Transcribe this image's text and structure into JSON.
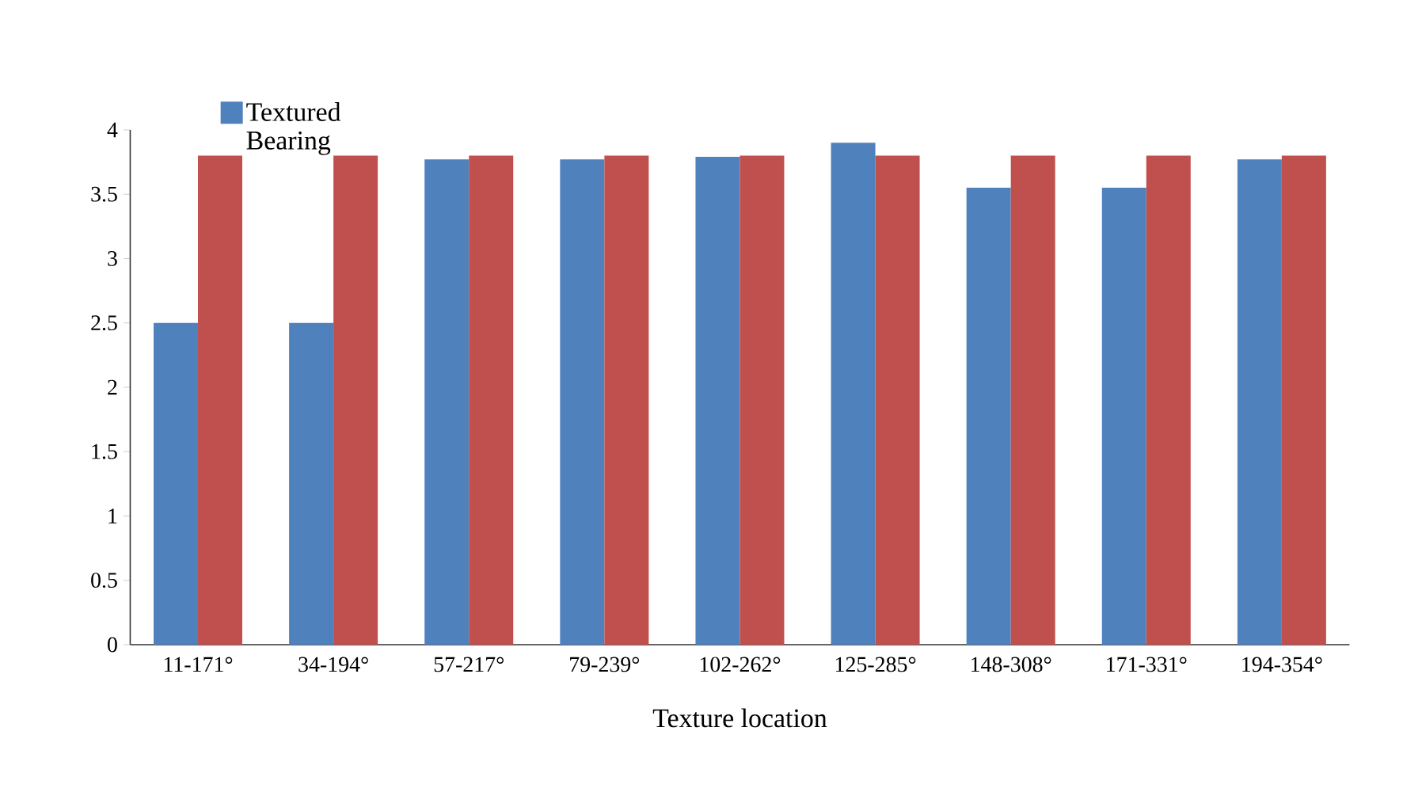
{
  "chart_data": {
    "type": "bar",
    "xlabel": "Texture location",
    "categories": [
      "11-171°",
      "34-194°",
      "57-217°",
      "79-239°",
      "102-262°",
      "125-285°",
      "148-308°",
      "171-331°",
      "194-354°"
    ],
    "series": [
      {
        "name": "Textured Bearing",
        "color": "#4f81bd",
        "values": [
          2.5,
          2.5,
          3.77,
          3.77,
          3.79,
          3.9,
          3.55,
          3.55,
          3.77
        ]
      },
      {
        "color": "#c0504d",
        "values": [
          3.8,
          3.8,
          3.8,
          3.8,
          3.8,
          3.8,
          3.8,
          3.8,
          3.8
        ]
      }
    ],
    "ylim": [
      0,
      4
    ],
    "yticks": [
      0,
      0.5,
      1,
      1.5,
      2,
      2.5,
      3,
      3.5,
      4
    ],
    "legend": "top left"
  }
}
